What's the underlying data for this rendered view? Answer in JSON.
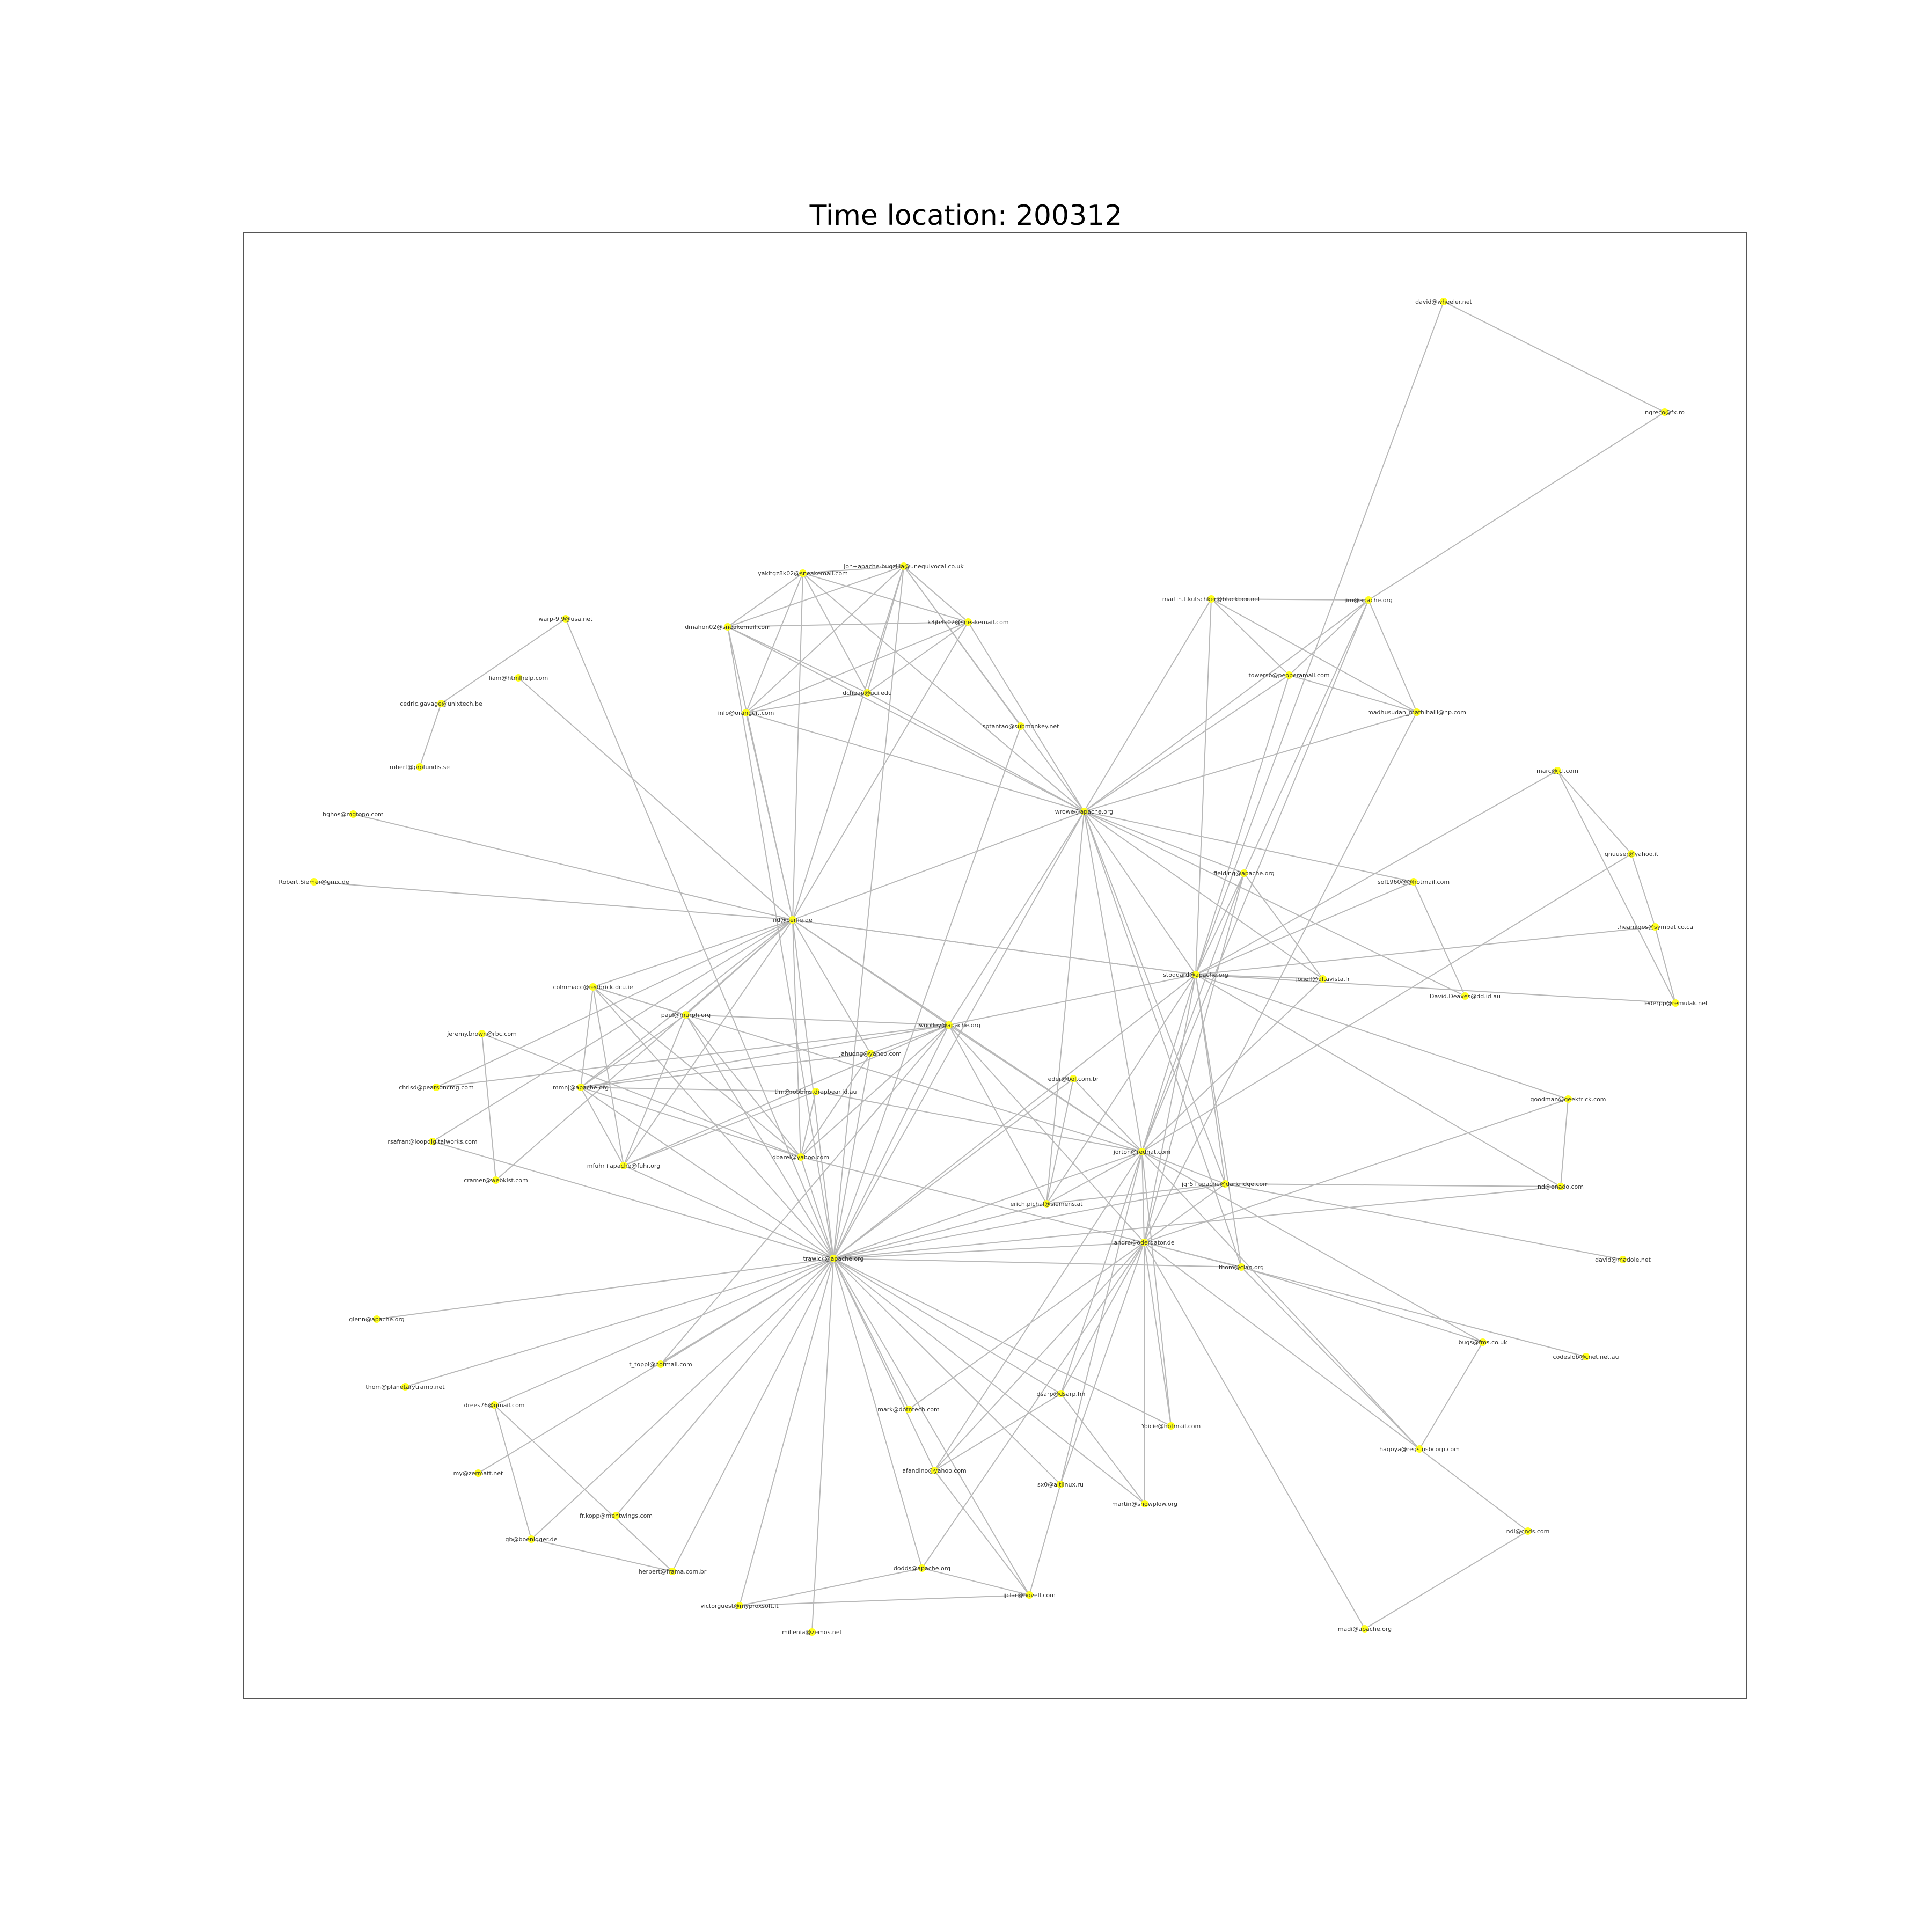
{
  "title": "Time location: 200312",
  "colors": {
    "node": "#ffff1e",
    "edge": "#b8b8b8",
    "frame": "#555555"
  },
  "nodes": [
    {
      "id": "david_wheeler",
      "label": "david@wheeler.net"
    },
    {
      "id": "ngreco",
      "label": "ngreco@fx.ro"
    },
    {
      "id": "jim_apache",
      "label": "jim@apache.org"
    },
    {
      "id": "martin_kutschker",
      "label": "martin.t.kutschker@blackbox.net"
    },
    {
      "id": "towersb",
      "label": "towersb@peoperamail.com"
    },
    {
      "id": "madhusudan",
      "label": "madhusudan_mathihalli@hp.com"
    },
    {
      "id": "yakit",
      "label": "yakitgz8k02@sneakemail.com"
    },
    {
      "id": "jon_bugzilla",
      "label": "jon+apache-bugzilla@unequivocal.co.uk"
    },
    {
      "id": "dmahon",
      "label": "dmahon02@sneakemail.com"
    },
    {
      "id": "k3jb3",
      "label": "k3jb3k02@sneakemail.com"
    },
    {
      "id": "dcheap",
      "label": "dcheap@uci.edu"
    },
    {
      "id": "info_orange",
      "label": "info@orangeit.com"
    },
    {
      "id": "sptantao",
      "label": "sptantao@submonkey.net"
    },
    {
      "id": "wrowe",
      "label": "wrowe@apache.org"
    },
    {
      "id": "warp9",
      "label": "warp-9.9@usa.net"
    },
    {
      "id": "liam",
      "label": "liam@htmlhelp.com"
    },
    {
      "id": "cedric",
      "label": "cedric.gavage@unixtech.be"
    },
    {
      "id": "robert",
      "label": "robert@profundis.se"
    },
    {
      "id": "hghos",
      "label": "hghos@mgtopo.com"
    },
    {
      "id": "robert_siemer",
      "label": "Robert.Siemer@gmx.de"
    },
    {
      "id": "nd_perlig",
      "label": "nd@perlig.de"
    },
    {
      "id": "marc_jcl",
      "label": "marc@jcl.com"
    },
    {
      "id": "gnuuser",
      "label": "gnuuser@yahoo.it"
    },
    {
      "id": "theamigos",
      "label": "theamigos@sympatico.ca"
    },
    {
      "id": "federpp",
      "label": "federpp@remulak.net"
    },
    {
      "id": "fielding",
      "label": "fielding@apache.org"
    },
    {
      "id": "sol",
      "label": "sol1960@@hotmail.com"
    },
    {
      "id": "david_deaves",
      "label": "David.Deaves@dd.id.au"
    },
    {
      "id": "stoddard",
      "label": "stoddard@apache.org"
    },
    {
      "id": "jonelf",
      "label": "jonelf@altavista.fr"
    },
    {
      "id": "colmmacc",
      "label": "colmmacc@redbrick.dcu.ie"
    },
    {
      "id": "jeremy",
      "label": "jeremy.brown@rbc.com"
    },
    {
      "id": "paul_murph",
      "label": "paul@murph.org"
    },
    {
      "id": "jwoolley",
      "label": "jwoolley@apache.org"
    },
    {
      "id": "jahuong",
      "label": "jahuong@yahoo.com"
    },
    {
      "id": "chrisd",
      "label": "chrisd@pearsoncmg.com"
    },
    {
      "id": "mmnj",
      "label": "mmnj@apache.org"
    },
    {
      "id": "tim_robbins",
      "label": "tim@robbins.dropbear.id.au"
    },
    {
      "id": "eder",
      "label": "eder@bol.com.br"
    },
    {
      "id": "goodman",
      "label": "goodman@geektrick.com"
    },
    {
      "id": "rsafran",
      "label": "rsafran@loopdigitalworks.com"
    },
    {
      "id": "mfuhr",
      "label": "mfuhr+apache@fuhr.org"
    },
    {
      "id": "dbarel",
      "label": "dbarel@yahoo.com"
    },
    {
      "id": "jorton",
      "label": "jorton@redhat.com"
    },
    {
      "id": "cramer",
      "label": "cramer@webkist.com"
    },
    {
      "id": "jgr",
      "label": "jgr5+apache@darkridge.com"
    },
    {
      "id": "nd_onado",
      "label": "nd@onado.com"
    },
    {
      "id": "erich",
      "label": "erich.pichal@siemens.at"
    },
    {
      "id": "andre",
      "label": "andre@oderdator.de"
    },
    {
      "id": "trawick",
      "label": "trawick@apache.org"
    },
    {
      "id": "david_madole",
      "label": "david@madole.net"
    },
    {
      "id": "thom_clan",
      "label": "thom@clan.org"
    },
    {
      "id": "glenn",
      "label": "glenn@apache.org"
    },
    {
      "id": "thom_planetary",
      "label": "thom@planetarytramp.net"
    },
    {
      "id": "bugs_fms",
      "label": "bugs@fms.co.uk"
    },
    {
      "id": "codeslob",
      "label": "codeslob@cnet.net.au"
    },
    {
      "id": "t_toppi",
      "label": "t_toppi@hotmail.com"
    },
    {
      "id": "mark_dotnet",
      "label": "mark@dotntech.com"
    },
    {
      "id": "dsarp",
      "label": "dsarp@dsarp.fm"
    },
    {
      "id": "drees",
      "label": "drees76@gmail.com"
    },
    {
      "id": "yoicie",
      "label": "Yoicie@hotmail.com"
    },
    {
      "id": "hagoya",
      "label": "hagoya@regs.osbcorp.com"
    },
    {
      "id": "my_zermatt",
      "label": "my@zermatt.net"
    },
    {
      "id": "afandino",
      "label": "afandino@yahoo.com"
    },
    {
      "id": "sx0",
      "label": "sx0@altlinux.ru"
    },
    {
      "id": "martin_snowplow",
      "label": "martin@snowplow.org"
    },
    {
      "id": "fr_kopp",
      "label": "fr.kopp@mentwings.com"
    },
    {
      "id": "gb_boenigger",
      "label": "gb@boenigger.de"
    },
    {
      "id": "ndi_cnds",
      "label": "ndi@cnds.com"
    },
    {
      "id": "herbert",
      "label": "herbert@frama.com.br"
    },
    {
      "id": "dodds",
      "label": "dodds@apache.org"
    },
    {
      "id": "victorguest",
      "label": "victorguest@myproxsoft.it"
    },
    {
      "id": "jjclar",
      "label": "jjclar@novell.com"
    },
    {
      "id": "madi",
      "label": "madi@apache.org"
    },
    {
      "id": "millenia",
      "label": "millenia@zemos.net"
    }
  ],
  "edges": [
    [
      "david_wheeler",
      "ngreco"
    ],
    [
      "david_wheeler",
      "stoddard"
    ],
    [
      "ngreco",
      "jim_apache"
    ],
    [
      "jim_apache",
      "martin_kutschker"
    ],
    [
      "jim_apache",
      "towersb"
    ],
    [
      "jim_apache",
      "madhusudan"
    ],
    [
      "jim_apache",
      "wrowe"
    ],
    [
      "jim_apache",
      "jorton"
    ],
    [
      "jim_apache",
      "fielding"
    ],
    [
      "martin_kutschker",
      "towersb"
    ],
    [
      "martin_kutschker",
      "madhusudan"
    ],
    [
      "martin_kutschker",
      "wrowe"
    ],
    [
      "martin_kutschker",
      "stoddard"
    ],
    [
      "towersb",
      "wrowe"
    ],
    [
      "towersb",
      "madhusudan"
    ],
    [
      "towersb",
      "stoddard"
    ],
    [
      "madhusudan",
      "wrowe"
    ],
    [
      "madhusudan",
      "andre"
    ],
    [
      "yakit",
      "jon_bugzilla"
    ],
    [
      "yakit",
      "dmahon"
    ],
    [
      "yakit",
      "info_orange"
    ],
    [
      "yakit",
      "dcheap"
    ],
    [
      "yakit",
      "nd_perlig"
    ],
    [
      "yakit",
      "wrowe"
    ],
    [
      "yakit",
      "k3jb3"
    ],
    [
      "jon_bugzilla",
      "dmahon"
    ],
    [
      "jon_bugzilla",
      "k3jb3"
    ],
    [
      "jon_bugzilla",
      "info_orange"
    ],
    [
      "jon_bugzilla",
      "dcheap"
    ],
    [
      "jon_bugzilla",
      "nd_perlig"
    ],
    [
      "jon_bugzilla",
      "sptantao"
    ],
    [
      "jon_bugzilla",
      "wrowe"
    ],
    [
      "jon_bugzilla",
      "trawick"
    ],
    [
      "dmahon",
      "k3jb3"
    ],
    [
      "dmahon",
      "dcheap"
    ],
    [
      "dmahon",
      "nd_perlig"
    ],
    [
      "dmahon",
      "wrowe"
    ],
    [
      "dmahon",
      "trawick"
    ],
    [
      "k3jb3",
      "info_orange"
    ],
    [
      "k3jb3",
      "dcheap"
    ],
    [
      "k3jb3",
      "wrowe"
    ],
    [
      "k3jb3",
      "nd_perlig"
    ],
    [
      "dcheap",
      "info_orange"
    ],
    [
      "dcheap",
      "wrowe"
    ],
    [
      "info_orange",
      "wrowe"
    ],
    [
      "info_orange",
      "nd_perlig"
    ],
    [
      "sptantao",
      "trawick"
    ],
    [
      "warp9",
      "cedric"
    ],
    [
      "warp9",
      "trawick"
    ],
    [
      "liam",
      "nd_perlig"
    ],
    [
      "cedric",
      "robert"
    ],
    [
      "hghos",
      "nd_perlig"
    ],
    [
      "robert_siemer",
      "nd_perlig"
    ],
    [
      "nd_perlig",
      "colmmacc"
    ],
    [
      "nd_perlig",
      "paul_murph"
    ],
    [
      "nd_perlig",
      "jwoolley"
    ],
    [
      "nd_perlig",
      "jahuong"
    ],
    [
      "nd_perlig",
      "mmnj"
    ],
    [
      "nd_perlig",
      "mfuhr"
    ],
    [
      "nd_perlig",
      "dbarel"
    ],
    [
      "nd_perlig",
      "jorton"
    ],
    [
      "nd_perlig",
      "trawick"
    ],
    [
      "nd_perlig",
      "stoddard"
    ],
    [
      "nd_perlig",
      "wrowe"
    ],
    [
      "nd_perlig",
      "chrisd"
    ],
    [
      "nd_perlig",
      "rsafran"
    ],
    [
      "wrowe",
      "fielding"
    ],
    [
      "wrowe",
      "stoddard"
    ],
    [
      "wrowe",
      "jonelf"
    ],
    [
      "wrowe",
      "sol"
    ],
    [
      "wrowe",
      "jwoolley"
    ],
    [
      "wrowe",
      "jorton"
    ],
    [
      "wrowe",
      "jgr"
    ],
    [
      "wrowe",
      "erich"
    ],
    [
      "wrowe",
      "thom_clan"
    ],
    [
      "wrowe",
      "trawick"
    ],
    [
      "marc_jcl",
      "gnuuser"
    ],
    [
      "marc_jcl",
      "federpp"
    ],
    [
      "marc_jcl",
      "stoddard"
    ],
    [
      "gnuuser",
      "theamigos"
    ],
    [
      "gnuuser",
      "jorton"
    ],
    [
      "theamigos",
      "federpp"
    ],
    [
      "fielding",
      "jonelf"
    ],
    [
      "fielding",
      "stoddard"
    ],
    [
      "fielding",
      "jorton"
    ],
    [
      "fielding",
      "andre"
    ],
    [
      "sol",
      "david_deaves"
    ],
    [
      "sol",
      "stoddard"
    ],
    [
      "david_deaves",
      "wrowe"
    ],
    [
      "stoddard",
      "jonelf"
    ],
    [
      "stoddard",
      "jorton"
    ],
    [
      "stoddard",
      "andre"
    ],
    [
      "stoddard",
      "goodman"
    ],
    [
      "stoddard",
      "trawick"
    ],
    [
      "stoddard",
      "jgr"
    ],
    [
      "stoddard",
      "nd_onado"
    ],
    [
      "stoddard",
      "jwoolley"
    ],
    [
      "stoddard",
      "thom_clan"
    ],
    [
      "stoddard",
      "federpp"
    ],
    [
      "stoddard",
      "theamigos"
    ],
    [
      "stoddard",
      "erich"
    ],
    [
      "stoddard",
      "nd_perlig"
    ],
    [
      "jonelf",
      "jorton"
    ],
    [
      "colmmacc",
      "paul_murph"
    ],
    [
      "colmmacc",
      "mmnj"
    ],
    [
      "colmmacc",
      "mfuhr"
    ],
    [
      "colmmacc",
      "dbarel"
    ],
    [
      "colmmacc",
      "trawick"
    ],
    [
      "colmmacc",
      "jorton"
    ],
    [
      "jeremy",
      "cramer"
    ],
    [
      "jeremy",
      "dbarel"
    ],
    [
      "paul_murph",
      "mmnj"
    ],
    [
      "paul_murph",
      "mfuhr"
    ],
    [
      "paul_murph",
      "trawick"
    ],
    [
      "paul_murph",
      "dbarel"
    ],
    [
      "paul_murph",
      "jwoolley"
    ],
    [
      "jwoolley",
      "jahuong"
    ],
    [
      "jwoolley",
      "mmnj"
    ],
    [
      "jwoolley",
      "mfuhr"
    ],
    [
      "jwoolley",
      "jorton"
    ],
    [
      "jwoolley",
      "trawick"
    ],
    [
      "jwoolley",
      "andre"
    ],
    [
      "jwoolley",
      "erich"
    ],
    [
      "jwoolley",
      "dbarel"
    ],
    [
      "jwoolley",
      "t_toppi"
    ],
    [
      "jahuong",
      "trawick"
    ],
    [
      "jahuong",
      "dbarel"
    ],
    [
      "jahuong",
      "mmnj"
    ],
    [
      "chrisd",
      "jwoolley"
    ],
    [
      "mmnj",
      "mfuhr"
    ],
    [
      "mmnj",
      "dbarel"
    ],
    [
      "mmnj",
      "trawick"
    ],
    [
      "mmnj",
      "tim_robbins"
    ],
    [
      "tim_robbins",
      "mfuhr"
    ],
    [
      "tim_robbins",
      "dbarel"
    ],
    [
      "tim_robbins",
      "jorton"
    ],
    [
      "eder",
      "jorton"
    ],
    [
      "eder",
      "trawick"
    ],
    [
      "eder",
      "erich"
    ],
    [
      "goodman",
      "nd_onado"
    ],
    [
      "goodman",
      "andre"
    ],
    [
      "rsafran",
      "trawick"
    ],
    [
      "mfuhr",
      "trawick"
    ],
    [
      "cramer",
      "nd_perlig"
    ],
    [
      "dbarel",
      "trawick"
    ],
    [
      "dbarel",
      "andre"
    ],
    [
      "jorton",
      "jgr"
    ],
    [
      "jorton",
      "andre"
    ],
    [
      "jorton",
      "trawick"
    ],
    [
      "jorton",
      "erich"
    ],
    [
      "jorton",
      "bugs_fms"
    ],
    [
      "jorton",
      "afandino"
    ],
    [
      "jorton",
      "dsarp"
    ],
    [
      "jorton",
      "yoicie"
    ],
    [
      "jorton",
      "hagoya"
    ],
    [
      "jorton",
      "sx0"
    ],
    [
      "jgr",
      "nd_onado"
    ],
    [
      "jgr",
      "trawick"
    ],
    [
      "jgr",
      "david_madole"
    ],
    [
      "jgr",
      "andre"
    ],
    [
      "jgr",
      "erich"
    ],
    [
      "nd_onado",
      "trawick"
    ],
    [
      "erich",
      "trawick"
    ],
    [
      "andre",
      "trawick"
    ],
    [
      "andre",
      "thom_clan"
    ],
    [
      "andre",
      "hagoya"
    ],
    [
      "andre",
      "madi"
    ],
    [
      "andre",
      "mark_dotnet"
    ],
    [
      "andre",
      "afandino"
    ],
    [
      "andre",
      "dodds"
    ],
    [
      "andre",
      "martin_snowplow"
    ],
    [
      "andre",
      "yoicie"
    ],
    [
      "andre",
      "sx0"
    ],
    [
      "andre",
      "dsarp"
    ],
    [
      "andre",
      "codeslob"
    ],
    [
      "trawick",
      "glenn"
    ],
    [
      "trawick",
      "thom_planetary"
    ],
    [
      "trawick",
      "t_toppi"
    ],
    [
      "trawick",
      "mark_dotnet"
    ],
    [
      "trawick",
      "dsarp"
    ],
    [
      "trawick",
      "drees"
    ],
    [
      "trawick",
      "yoicie"
    ],
    [
      "trawick",
      "afandino"
    ],
    [
      "trawick",
      "sx0"
    ],
    [
      "trawick",
      "martin_snowplow"
    ],
    [
      "trawick",
      "fr_kopp"
    ],
    [
      "trawick",
      "gb_boenigger"
    ],
    [
      "trawick",
      "herbert"
    ],
    [
      "trawick",
      "dodds"
    ],
    [
      "trawick",
      "victorguest"
    ],
    [
      "trawick",
      "jjclar"
    ],
    [
      "trawick",
      "millenia"
    ],
    [
      "trawick",
      "my_zermatt"
    ],
    [
      "trawick",
      "thom_clan"
    ],
    [
      "thom_clan",
      "bugs_fms"
    ],
    [
      "thom_clan",
      "hagoya"
    ],
    [
      "bugs_fms",
      "hagoya"
    ],
    [
      "hagoya",
      "ndi_cnds"
    ],
    [
      "ndi_cnds",
      "madi"
    ],
    [
      "drees",
      "gb_boenigger"
    ],
    [
      "drees",
      "herbert"
    ],
    [
      "gb_boenigger",
      "herbert"
    ],
    [
      "dsarp",
      "martin_snowplow"
    ],
    [
      "dsarp",
      "afandino"
    ],
    [
      "afandino",
      "jjclar"
    ],
    [
      "sx0",
      "jjclar"
    ],
    [
      "dodds",
      "victorguest"
    ],
    [
      "dodds",
      "jjclar"
    ],
    [
      "victorguest",
      "jjclar"
    ]
  ]
}
